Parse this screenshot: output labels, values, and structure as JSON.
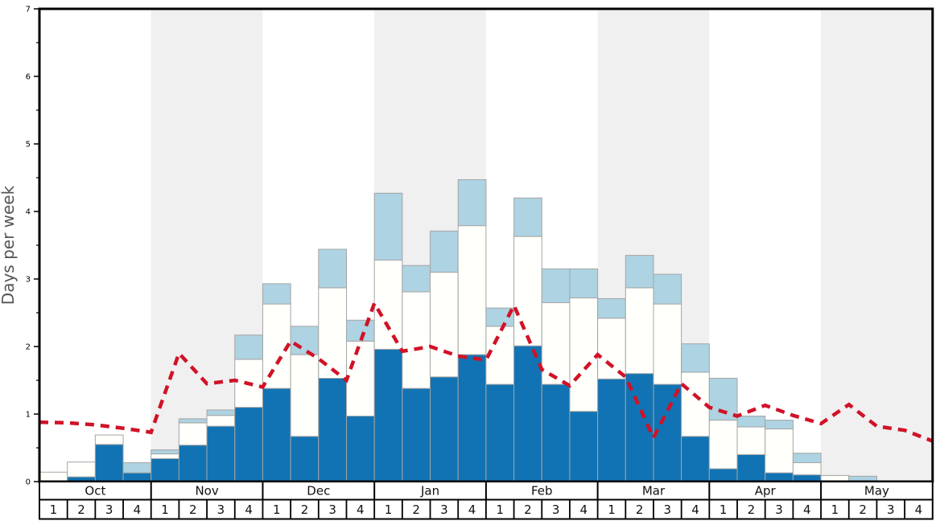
{
  "chart_data": {
    "type": "bar",
    "title": "",
    "ylabel": "Days per week",
    "ylim": [
      0,
      7
    ],
    "yticks": [
      0,
      1,
      2,
      3,
      4,
      5,
      6,
      7
    ],
    "minor_tick_step": 0.5,
    "grid": false,
    "legend_position": "none",
    "months": [
      "Oct",
      "Nov",
      "Dec",
      "Jan",
      "Feb",
      "Mar",
      "Apr",
      "May"
    ],
    "weeks_per_month": 4,
    "week_labels": [
      "1",
      "2",
      "3",
      "4"
    ],
    "shaded_months": [
      "Nov",
      "Jan",
      "Mar",
      "May"
    ],
    "stack_order_note": "stacked bottom-to-top: dark-blue, white, light-blue; 32 weekly values Oct w1 - May w4",
    "series": [
      {
        "name": "dark-blue-days",
        "color": "#1173b3",
        "values": [
          0.0,
          0.07,
          0.55,
          0.13,
          0.34,
          0.54,
          0.82,
          1.1,
          1.38,
          0.67,
          1.53,
          0.97,
          1.96,
          1.38,
          1.55,
          1.88,
          1.44,
          2.01,
          1.44,
          1.04,
          1.52,
          1.6,
          1.44,
          0.67,
          0.19,
          0.4,
          0.13,
          0.1,
          0.0,
          0.0,
          0.0,
          0.0
        ]
      },
      {
        "name": "white-days",
        "color": "#fffffb",
        "values": [
          0.14,
          0.22,
          0.14,
          0.0,
          0.07,
          0.33,
          0.16,
          0.71,
          1.25,
          1.21,
          1.34,
          1.11,
          1.32,
          1.43,
          1.55,
          1.91,
          0.86,
          1.62,
          1.21,
          1.68,
          0.9,
          1.27,
          1.19,
          0.95,
          0.72,
          0.41,
          0.65,
          0.18,
          0.09,
          0.0,
          0.0,
          0.0
        ]
      },
      {
        "name": "light-blue-days",
        "color": "#aed3e2",
        "values": [
          0.0,
          0.0,
          0.0,
          0.15,
          0.06,
          0.06,
          0.08,
          0.36,
          0.3,
          0.42,
          0.57,
          0.31,
          0.99,
          0.39,
          0.61,
          0.68,
          0.27,
          0.57,
          0.5,
          0.43,
          0.29,
          0.48,
          0.44,
          0.42,
          0.62,
          0.16,
          0.13,
          0.14,
          0.0,
          0.08,
          0.0,
          0.0
        ]
      }
    ],
    "line": {
      "name": "red-dashed-line",
      "color": "#d11227",
      "style": "dashed",
      "x_mode": "week-boundaries (33 points incl. both plot edges)",
      "values": [
        0.88,
        0.87,
        0.84,
        0.79,
        0.73,
        1.9,
        1.45,
        1.5,
        1.4,
        2.08,
        1.82,
        1.5,
        2.64,
        1.93,
        2.0,
        1.86,
        1.8,
        2.61,
        1.66,
        1.42,
        1.88,
        1.55,
        0.65,
        1.45,
        1.1,
        0.97,
        1.13,
        0.98,
        0.86,
        1.14,
        0.82,
        0.76,
        0.6
      ]
    },
    "colors": {
      "band": "#f0f0f0",
      "bar_border": "#a5a5a5",
      "axis": "#000000",
      "ylabel_text": "#555555",
      "tick_label_text": "#000000"
    }
  }
}
